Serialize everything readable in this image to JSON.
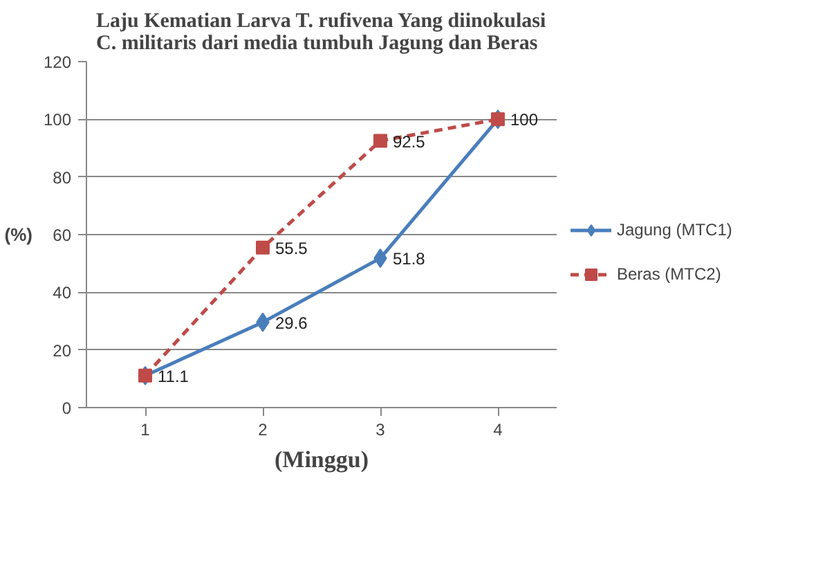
{
  "chart_data": {
    "type": "line",
    "title": "Laju Kematian Larva T. rufivena Yang diinokulasi C. militaris dari media tumbuh Jagung dan Beras",
    "xlabel": "(Minggu)",
    "ylabel": "(%)",
    "categories": [
      "1",
      "2",
      "3",
      "4"
    ],
    "series": [
      {
        "name": "Jagung (MTC1)",
        "color": "#4a7ebb",
        "values": [
          11.1,
          29.6,
          51.8,
          100
        ],
        "marker": "diamond",
        "line_style": "solid",
        "value_labels": [
          "11.1",
          "29.6",
          "51.8",
          "100"
        ]
      },
      {
        "name": "Beras (MTC2)",
        "color": "#be4b48",
        "values": [
          11.1,
          55.5,
          92.5,
          100
        ],
        "marker": "square",
        "line_style": "dashed",
        "value_labels": [
          null,
          "55.5",
          "92.5",
          null
        ]
      }
    ],
    "ylim": [
      0,
      120
    ],
    "yticks": [
      0,
      20,
      40,
      60,
      80,
      100,
      120
    ],
    "grid": "y",
    "legend": "right"
  }
}
